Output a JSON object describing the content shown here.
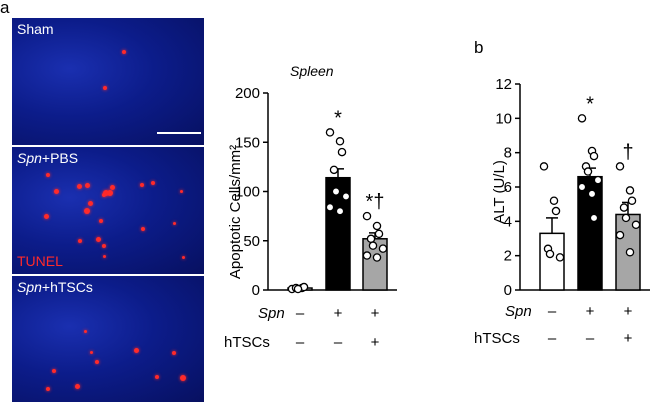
{
  "panel_a": {
    "letter": "a",
    "images": [
      {
        "label_italic": "",
        "label_rest": "Sham",
        "dots": 2
      },
      {
        "label_italic": "Spn",
        "label_rest": "+PBS",
        "dots": 22
      },
      {
        "label_italic": "Spn",
        "label_rest": "+hTSCs",
        "dots": 10
      }
    ],
    "stain_label": "TUNEL"
  },
  "panel_b": {
    "letter": "b"
  },
  "row_labels": {
    "spn": "Spn",
    "htscs": "hTSCs"
  },
  "group_signs": {
    "spn": [
      "–",
      "+",
      "+"
    ],
    "htscs": [
      "–",
      "–",
      "+"
    ]
  },
  "colors": {
    "control": "#ffffff",
    "pbs": "#000000",
    "htscs": "#a6a6a6",
    "nuclei": "#0c1c8a",
    "tunel": "#ff2a2a"
  },
  "chart_data": [
    {
      "type": "bar",
      "title": "Spleen",
      "ylabel": "Apoptotic Cells/mm²",
      "ylim": [
        0,
        200
      ],
      "yticks": [
        0,
        50,
        100,
        150,
        200
      ],
      "categories": [
        "Sham",
        "Spn+PBS",
        "Spn+hTSCs"
      ],
      "values": [
        2,
        114,
        52
      ],
      "errors": [
        1,
        9,
        6
      ],
      "annotations": [
        "",
        "*",
        "*†"
      ],
      "points": [
        [
          1,
          2,
          3,
          2,
          1
        ],
        [
          160,
          151,
          140,
          122,
          100,
          95,
          84,
          80
        ],
        [
          75,
          65,
          57,
          52,
          45,
          42,
          35,
          33
        ]
      ]
    },
    {
      "type": "bar",
      "title": "",
      "ylabel": "ALT (U/L)",
      "ylim": [
        0,
        12
      ],
      "yticks": [
        0,
        2,
        4,
        6,
        8,
        10,
        12
      ],
      "categories": [
        "Sham",
        "Spn+PBS",
        "Spn+hTSCs"
      ],
      "values": [
        3.3,
        6.6,
        4.4
      ],
      "errors": [
        0.9,
        0.5,
        0.7
      ],
      "annotations": [
        "",
        "*",
        "†"
      ],
      "points": [
        [
          7.2,
          5.2,
          4.6,
          2.4,
          2.1,
          1.9
        ],
        [
          10.0,
          8.1,
          7.8,
          7.2,
          6.9,
          6.4,
          6.0,
          5.6,
          4.2
        ],
        [
          7.2,
          5.8,
          5.2,
          4.8,
          4.2,
          3.8,
          3.2,
          2.2
        ]
      ]
    }
  ]
}
